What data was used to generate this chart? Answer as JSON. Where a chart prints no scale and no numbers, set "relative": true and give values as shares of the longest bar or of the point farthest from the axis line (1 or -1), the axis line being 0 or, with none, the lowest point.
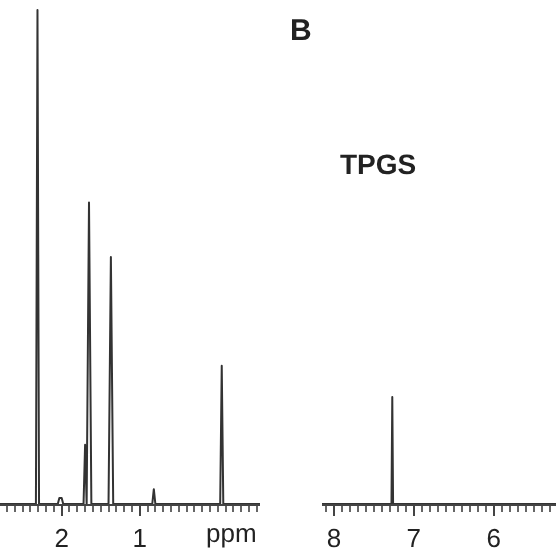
{
  "chart_data": [
    {
      "type": "line",
      "relative": true,
      "xlabel": "ppm",
      "xlim": [
        2.79,
        -0.54
      ],
      "xticks": [
        2,
        1
      ],
      "series": [
        {
          "color": "#333333",
          "x": [
            2.79,
            2.33,
            2.31,
            2.29,
            2.05,
            2.03,
            2.0,
            1.98,
            1.72,
            1.7,
            1.68,
            1.65,
            1.62,
            1.4,
            1.37,
            1.34,
            0.84,
            0.82,
            0.8,
            -0.03,
            -0.05,
            -0.07,
            -0.54
          ],
          "values": [
            0,
            0,
            1,
            0,
            0,
            0.012,
            0.012,
            0,
            0,
            0.12,
            0,
            0.61,
            0,
            0,
            0.5,
            0,
            0,
            0.03,
            0,
            0,
            0.28,
            0,
            0
          ]
        }
      ]
    },
    {
      "type": "line",
      "relative": true,
      "title": "TPGS",
      "annotations": [
        "B"
      ],
      "xlim": [
        8.15,
        5.22
      ],
      "xticks": [
        8,
        7,
        6
      ],
      "series": [
        {
          "color": "#333333",
          "x": [
            8.15,
            7.28,
            7.27,
            7.26,
            5.22
          ],
          "values": [
            0,
            0,
            1,
            0,
            0
          ]
        }
      ]
    }
  ]
}
